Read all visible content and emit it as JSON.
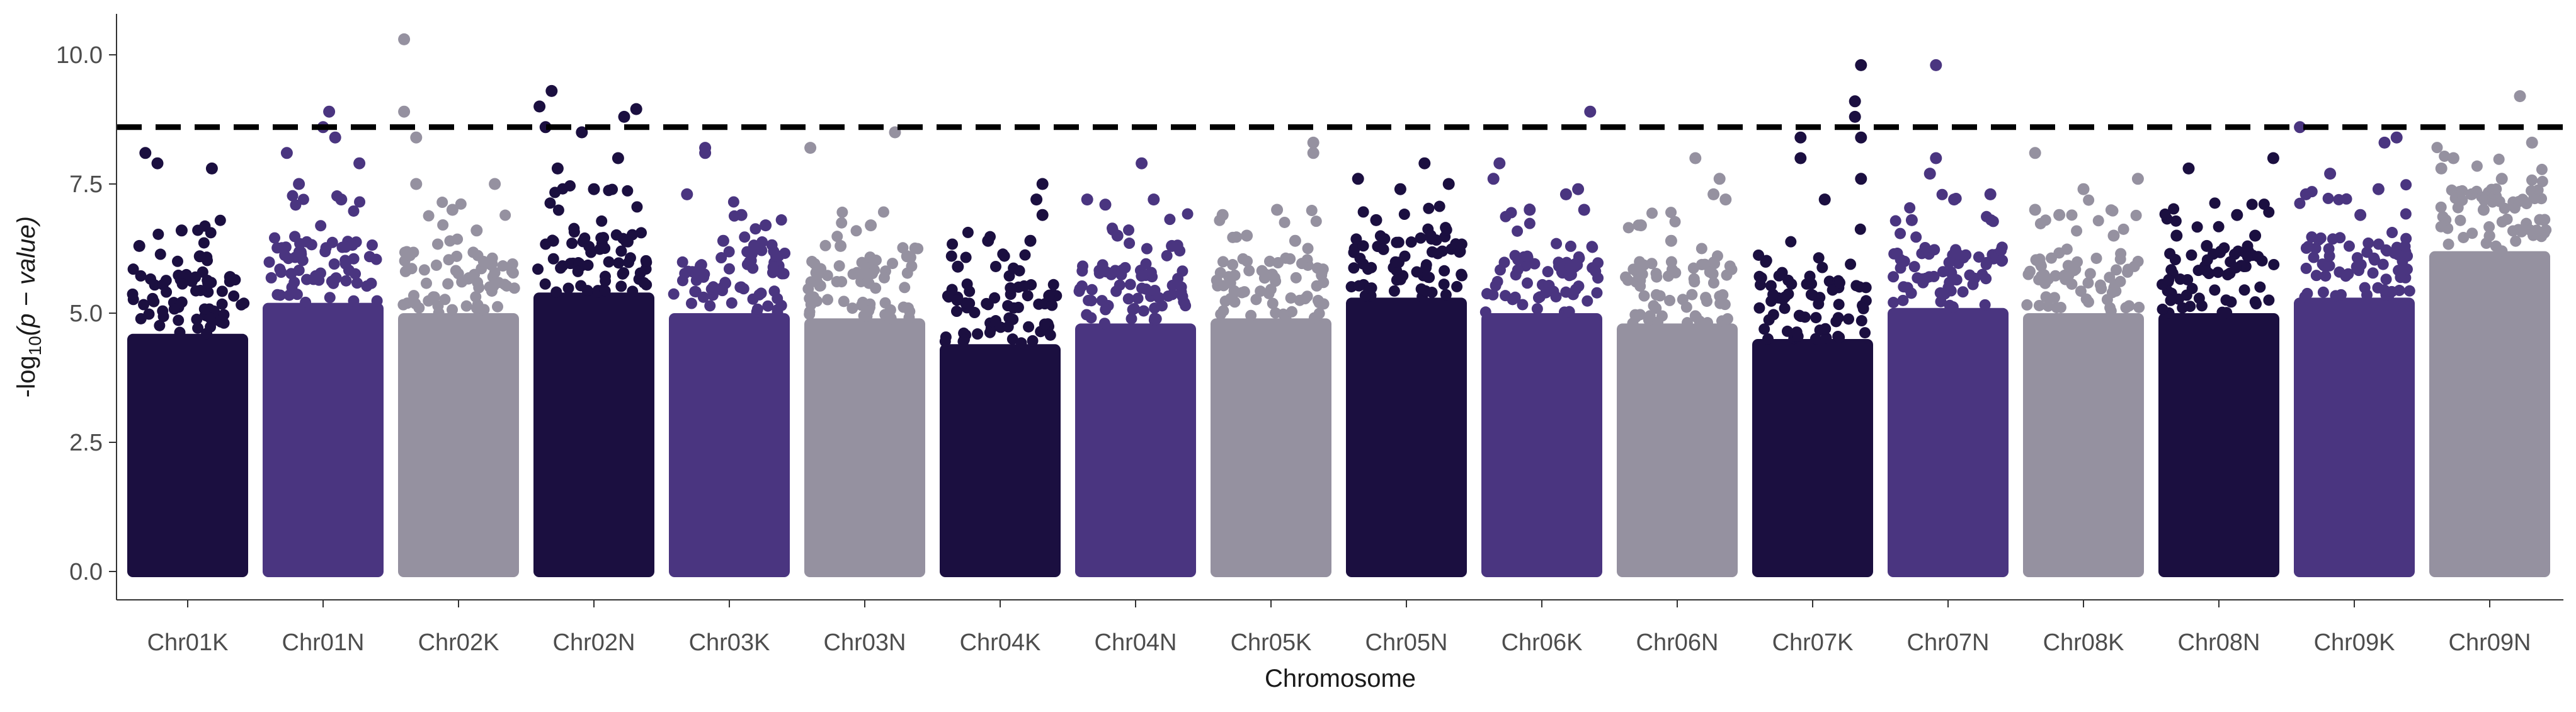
{
  "chart_data": {
    "type": "scatter",
    "subtype": "manhattan",
    "title": "",
    "xlabel": "Chromosome",
    "ylabel_prefix": "-log",
    "ylabel_sub": "10",
    "ylabel_suffix": "(p − value)",
    "ylim": [
      0,
      10.5
    ],
    "yticks": [
      "0.0",
      "2.5",
      "5.0",
      "7.5",
      "10.0"
    ],
    "ytick_values": [
      0,
      2.5,
      5.0,
      7.5,
      10.0
    ],
    "threshold": 8.6,
    "threshold_style": "dashed",
    "grid": false,
    "legend": "none",
    "colors": [
      "#1b0f40",
      "#4a3580",
      "#9591a0"
    ],
    "chromosomes": [
      {
        "name": "Chr01K",
        "color": "#1b0f40",
        "band_top": 4.6,
        "peaks": [
          {
            "x": 0.15,
            "y": 8.1
          },
          {
            "x": 0.25,
            "y": 7.9
          },
          {
            "x": 0.7,
            "y": 7.8
          },
          {
            "x": 0.45,
            "y": 6.6
          },
          {
            "x": 0.1,
            "y": 6.3
          },
          {
            "x": 0.6,
            "y": 6.1
          },
          {
            "x": 0.85,
            "y": 5.7
          }
        ]
      },
      {
        "name": "Chr01N",
        "color": "#4a3580",
        "band_top": 5.2,
        "peaks": [
          {
            "x": 0.55,
            "y": 8.9
          },
          {
            "x": 0.5,
            "y": 8.6
          },
          {
            "x": 0.6,
            "y": 8.4
          },
          {
            "x": 0.2,
            "y": 8.1
          },
          {
            "x": 0.3,
            "y": 7.5
          },
          {
            "x": 0.8,
            "y": 7.9
          },
          {
            "x": 0.65,
            "y": 7.2
          }
        ]
      },
      {
        "name": "Chr02K",
        "color": "#9591a0",
        "band_top": 5.0,
        "peaks": [
          {
            "x": 0.05,
            "y": 10.3
          },
          {
            "x": 0.05,
            "y": 8.9
          },
          {
            "x": 0.15,
            "y": 8.4
          },
          {
            "x": 0.15,
            "y": 7.5
          },
          {
            "x": 0.8,
            "y": 7.5
          },
          {
            "x": 0.45,
            "y": 7.0
          },
          {
            "x": 0.65,
            "y": 6.6
          }
        ]
      },
      {
        "name": "Chr02N",
        "color": "#1b0f40",
        "band_top": 5.4,
        "peaks": [
          {
            "x": 0.15,
            "y": 9.3
          },
          {
            "x": 0.05,
            "y": 9.0
          },
          {
            "x": 0.1,
            "y": 8.6
          },
          {
            "x": 0.85,
            "y": 8.95
          },
          {
            "x": 0.75,
            "y": 8.8
          },
          {
            "x": 0.4,
            "y": 8.5
          },
          {
            "x": 0.7,
            "y": 8.0
          },
          {
            "x": 0.2,
            "y": 7.8
          },
          {
            "x": 0.5,
            "y": 7.4
          }
        ]
      },
      {
        "name": "Chr03K",
        "color": "#4a3580",
        "band_top": 5.0,
        "peaks": [
          {
            "x": 0.3,
            "y": 8.2
          },
          {
            "x": 0.3,
            "y": 8.1
          },
          {
            "x": 0.15,
            "y": 7.3
          },
          {
            "x": 0.6,
            "y": 6.9
          },
          {
            "x": 0.8,
            "y": 6.7
          },
          {
            "x": 0.45,
            "y": 6.4
          }
        ]
      },
      {
        "name": "Chr03N",
        "color": "#9591a0",
        "band_top": 4.9,
        "peaks": [
          {
            "x": 0.05,
            "y": 8.2
          },
          {
            "x": 0.75,
            "y": 8.5
          },
          {
            "x": 0.55,
            "y": 6.7
          },
          {
            "x": 0.3,
            "y": 6.3
          },
          {
            "x": 0.85,
            "y": 6.1
          }
        ]
      },
      {
        "name": "Chr04K",
        "color": "#1b0f40",
        "band_top": 4.4,
        "peaks": [
          {
            "x": 0.85,
            "y": 7.5
          },
          {
            "x": 0.8,
            "y": 7.2
          },
          {
            "x": 0.85,
            "y": 6.9
          },
          {
            "x": 0.75,
            "y": 6.4
          },
          {
            "x": 0.4,
            "y": 6.4
          },
          {
            "x": 0.15,
            "y": 5.9
          }
        ]
      },
      {
        "name": "Chr04N",
        "color": "#4a3580",
        "band_top": 4.8,
        "peaks": [
          {
            "x": 0.55,
            "y": 7.9
          },
          {
            "x": 0.25,
            "y": 7.1
          },
          {
            "x": 0.65,
            "y": 7.2
          },
          {
            "x": 0.1,
            "y": 7.2
          },
          {
            "x": 0.35,
            "y": 6.5
          },
          {
            "x": 0.8,
            "y": 6.3
          }
        ]
      },
      {
        "name": "Chr05K",
        "color": "#9591a0",
        "band_top": 4.9,
        "peaks": [
          {
            "x": 0.85,
            "y": 8.3
          },
          {
            "x": 0.85,
            "y": 8.1
          },
          {
            "x": 0.1,
            "y": 6.9
          },
          {
            "x": 0.55,
            "y": 7.0
          },
          {
            "x": 0.3,
            "y": 6.5
          },
          {
            "x": 0.7,
            "y": 6.4
          }
        ]
      },
      {
        "name": "Chr05N",
        "color": "#1b0f40",
        "band_top": 5.3,
        "peaks": [
          {
            "x": 0.65,
            "y": 7.9
          },
          {
            "x": 0.1,
            "y": 7.6
          },
          {
            "x": 0.45,
            "y": 7.4
          },
          {
            "x": 0.85,
            "y": 7.5
          },
          {
            "x": 0.25,
            "y": 6.8
          },
          {
            "x": 0.7,
            "y": 6.5
          }
        ]
      },
      {
        "name": "Chr06K",
        "color": "#4a3580",
        "band_top": 5.0,
        "peaks": [
          {
            "x": 0.9,
            "y": 8.9
          },
          {
            "x": 0.15,
            "y": 7.9
          },
          {
            "x": 0.1,
            "y": 7.6
          },
          {
            "x": 0.8,
            "y": 7.4
          },
          {
            "x": 0.7,
            "y": 7.3
          },
          {
            "x": 0.85,
            "y": 7.0
          },
          {
            "x": 0.4,
            "y": 7.0
          }
        ]
      },
      {
        "name": "Chr06N",
        "color": "#9591a0",
        "band_top": 4.8,
        "peaks": [
          {
            "x": 0.65,
            "y": 8.0
          },
          {
            "x": 0.85,
            "y": 7.6
          },
          {
            "x": 0.8,
            "y": 7.3
          },
          {
            "x": 0.9,
            "y": 7.2
          },
          {
            "x": 0.2,
            "y": 6.7
          },
          {
            "x": 0.45,
            "y": 6.4
          }
        ]
      },
      {
        "name": "Chr07K",
        "color": "#1b0f40",
        "band_top": 4.5,
        "peaks": [
          {
            "x": 0.9,
            "y": 9.8
          },
          {
            "x": 0.85,
            "y": 9.1
          },
          {
            "x": 0.85,
            "y": 8.8
          },
          {
            "x": 0.4,
            "y": 8.4
          },
          {
            "x": 0.9,
            "y": 8.4
          },
          {
            "x": 0.4,
            "y": 8.0
          },
          {
            "x": 0.9,
            "y": 7.6
          },
          {
            "x": 0.6,
            "y": 7.2
          }
        ]
      },
      {
        "name": "Chr07N",
        "color": "#4a3580",
        "band_top": 5.1,
        "peaks": [
          {
            "x": 0.4,
            "y": 9.8
          },
          {
            "x": 0.4,
            "y": 8.0
          },
          {
            "x": 0.35,
            "y": 7.7
          },
          {
            "x": 0.55,
            "y": 7.2
          },
          {
            "x": 0.85,
            "y": 7.3
          },
          {
            "x": 0.2,
            "y": 6.8
          }
        ]
      },
      {
        "name": "Chr08K",
        "color": "#9591a0",
        "band_top": 5.0,
        "peaks": [
          {
            "x": 0.1,
            "y": 8.1
          },
          {
            "x": 0.95,
            "y": 7.6
          },
          {
            "x": 0.5,
            "y": 7.4
          },
          {
            "x": 0.1,
            "y": 7.0
          },
          {
            "x": 0.3,
            "y": 6.9
          },
          {
            "x": 0.75,
            "y": 6.5
          }
        ]
      },
      {
        "name": "Chr08N",
        "color": "#1b0f40",
        "band_top": 5.0,
        "peaks": [
          {
            "x": 0.25,
            "y": 7.8
          },
          {
            "x": 0.95,
            "y": 8.0
          },
          {
            "x": 0.65,
            "y": 6.9
          },
          {
            "x": 0.15,
            "y": 6.5
          },
          {
            "x": 0.8,
            "y": 6.5
          },
          {
            "x": 0.4,
            "y": 6.3
          }
        ]
      },
      {
        "name": "Chr09K",
        "color": "#4a3580",
        "band_top": 5.3,
        "peaks": [
          {
            "x": 0.05,
            "y": 8.6
          },
          {
            "x": 0.85,
            "y": 8.4
          },
          {
            "x": 0.75,
            "y": 8.3
          },
          {
            "x": 0.3,
            "y": 7.7
          },
          {
            "x": 0.7,
            "y": 7.4
          },
          {
            "x": 0.1,
            "y": 7.3
          },
          {
            "x": 0.55,
            "y": 6.9
          }
        ]
      },
      {
        "name": "Chr09N",
        "color": "#9591a0",
        "band_top": 6.2,
        "peaks": [
          {
            "x": 0.75,
            "y": 9.2
          },
          {
            "x": 0.85,
            "y": 8.3
          },
          {
            "x": 0.2,
            "y": 8.0
          },
          {
            "x": 0.1,
            "y": 7.8
          },
          {
            "x": 0.6,
            "y": 7.6
          },
          {
            "x": 0.35,
            "y": 7.3
          },
          {
            "x": 0.45,
            "y": 7.0
          }
        ]
      }
    ]
  }
}
